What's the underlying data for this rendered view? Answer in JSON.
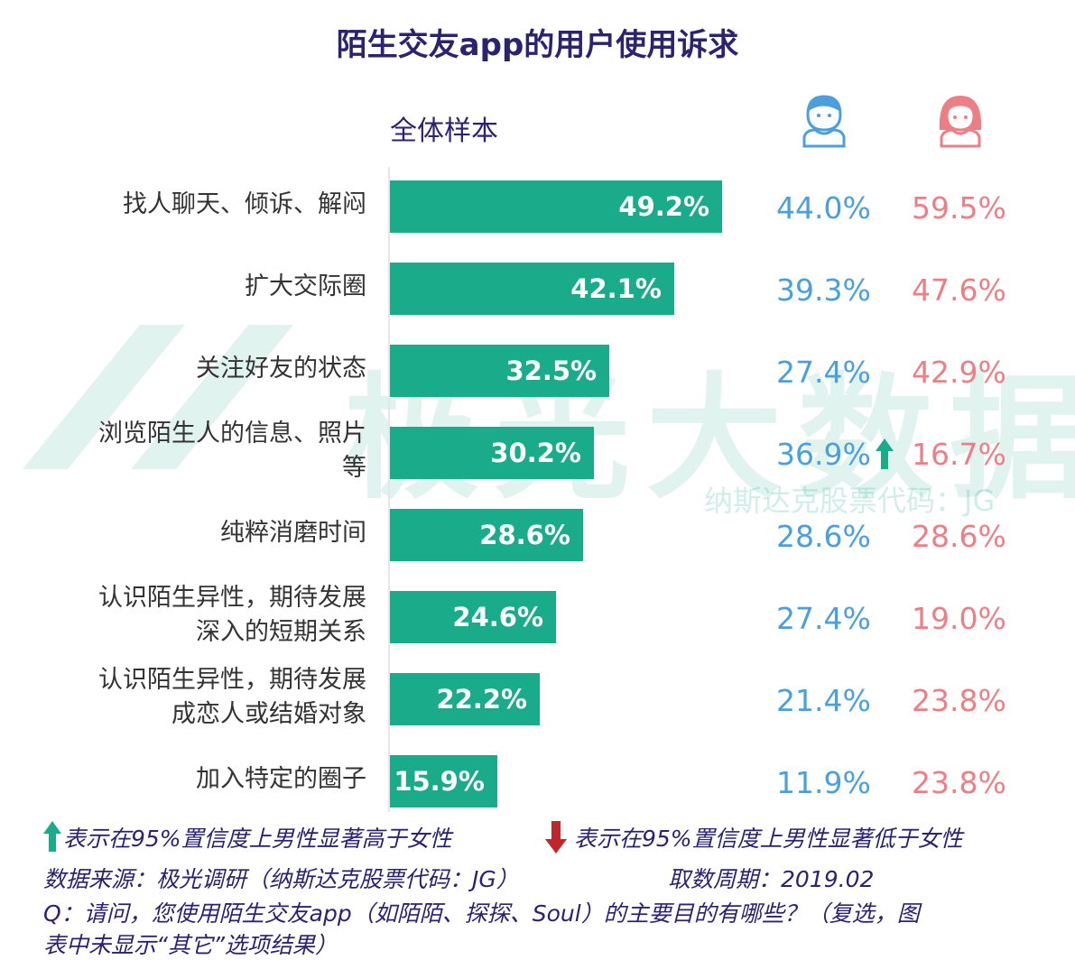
{
  "chart_data": {
    "type": "bar",
    "orientation": "horizontal",
    "title": "陌生交友app的用户使用诉求",
    "subtitle": "全体样本",
    "categories": [
      "找人聊天、倾诉、解闷",
      "扩大交际圈",
      "关注好友的状态",
      "浏览陌生人的信息、照片等",
      "纯粹消磨时间",
      "认识陌生异性，期待发展深入的短期关系",
      "认识陌生异性，期待发展成恋人或结婚对象",
      "加入特定的圈子"
    ],
    "category_lines": [
      [
        "找人聊天、倾诉、解闷"
      ],
      [
        "扩大交际圈"
      ],
      [
        "关注好友的状态"
      ],
      [
        "浏览陌生人的信息、照片",
        "等"
      ],
      [
        "纯粹消磨时间"
      ],
      [
        "认识陌生异性，期待发展",
        "深入的短期关系"
      ],
      [
        "认识陌生异性，期待发展",
        "成恋人或结婚对象"
      ],
      [
        "加入特定的圈子"
      ]
    ],
    "values": [
      49.2,
      42.1,
      32.5,
      30.2,
      28.6,
      24.6,
      22.2,
      15.9
    ],
    "value_labels": [
      "49.2%",
      "42.1%",
      "32.5%",
      "30.2%",
      "28.6%",
      "24.6%",
      "22.2%",
      "15.9%"
    ],
    "male": {
      "icon": "male-avatar-icon",
      "labels": [
        "44.0%",
        "39.3%",
        "27.4%",
        "36.9%",
        "28.6%",
        "27.4%",
        "21.4%",
        "11.9%"
      ],
      "values": [
        44.0,
        39.3,
        27.4,
        36.9,
        28.6,
        27.4,
        21.4,
        11.9
      ]
    },
    "female": {
      "icon": "female-avatar-icon",
      "labels": [
        "59.5%",
        "47.6%",
        "42.9%",
        "16.7%",
        "28.6%",
        "19.0%",
        "23.8%",
        "23.8%"
      ],
      "values": [
        59.5,
        47.6,
        42.9,
        16.7,
        28.6,
        19.0,
        23.8,
        23.8
      ]
    },
    "significance": [
      null,
      null,
      null,
      "up",
      null,
      null,
      null,
      null
    ],
    "xlim": [
      0,
      60
    ],
    "grid": false,
    "colors": {
      "bar": "#1aab8a",
      "male": "#4a9fdc",
      "female": "#ec7f86",
      "title": "#2b2270",
      "up_arrow": "#1aab8a",
      "down_arrow": "#c0272d"
    }
  },
  "legend": {
    "up": "表示在95%置信度上男性显著高于女性",
    "down": "表示在95%置信度上男性显著低于女性"
  },
  "footer": {
    "source": "数据来源：极光调研（纳斯达克股票代码：JG）",
    "period": "取数周期：2019.02",
    "question_line1": "Q：请问，您使用陌生交友app（如陌陌、探探、Soul）的主要目的有哪些？（复选，图",
    "question_line2": "表中未显示“其它”选项结果）"
  },
  "watermark": {
    "brand": "极光大数据",
    "ticker": "纳斯达克股票代码：JG"
  }
}
